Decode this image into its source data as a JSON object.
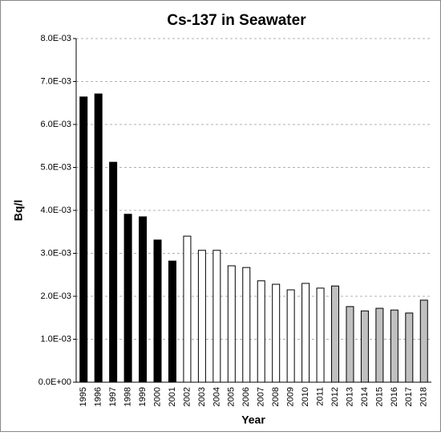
{
  "chart_data": {
    "type": "bar",
    "title": "Cs-137 in Seawater",
    "x_label": "Year",
    "y_label": "Bq/l",
    "categories": [
      "1995",
      "1996",
      "1997",
      "1998",
      "1999",
      "2000",
      "2001",
      "2002",
      "2003",
      "2004",
      "2005",
      "2006",
      "2007",
      "2008",
      "2009",
      "2010",
      "2011",
      "2012",
      "2013",
      "2014",
      "2015",
      "2016",
      "2017",
      "2018"
    ],
    "values": [
      0.00664,
      0.00671,
      0.00512,
      0.00391,
      0.00385,
      0.00331,
      0.00282,
      0.0034,
      0.00307,
      0.00307,
      0.00271,
      0.00267,
      0.00236,
      0.00228,
      0.00215,
      0.0023,
      0.00219,
      0.00224,
      0.00176,
      0.00166,
      0.00172,
      0.00168,
      0.00161,
      0.00191
    ],
    "colors": [
      "#000000",
      "#000000",
      "#000000",
      "#000000",
      "#000000",
      "#000000",
      "#000000",
      "#ffffff",
      "#ffffff",
      "#ffffff",
      "#ffffff",
      "#ffffff",
      "#ffffff",
      "#ffffff",
      "#ffffff",
      "#ffffff",
      "#ffffff",
      "#c0c0c0",
      "#c0c0c0",
      "#c0c0c0",
      "#c0c0c0",
      "#c0c0c0",
      "#c0c0c0",
      "#c0c0c0"
    ],
    "ylim": [
      0,
      0.008
    ],
    "yticks": [
      {
        "value": 0,
        "label": "0.0E+00"
      },
      {
        "value": 0.001,
        "label": "1.0E-03"
      },
      {
        "value": 0.002,
        "label": "2.0E-03"
      },
      {
        "value": 0.003,
        "label": "3.0E-03"
      },
      {
        "value": 0.004,
        "label": "4.0E-03"
      },
      {
        "value": 0.005,
        "label": "5.0E-03"
      },
      {
        "value": 0.006,
        "label": "6.0E-03"
      },
      {
        "value": 0.007,
        "label": "7.0E-03"
      },
      {
        "value": 0.008,
        "label": "8.0E-03"
      }
    ],
    "grid": true
  }
}
